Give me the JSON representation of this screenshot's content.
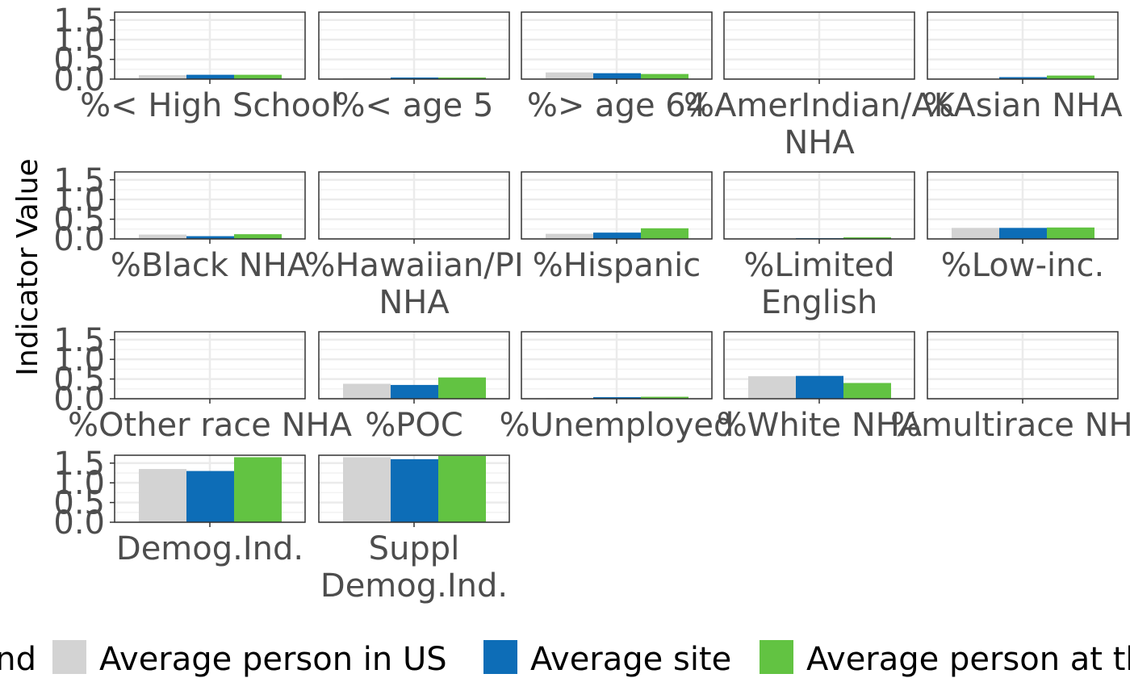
{
  "chart_data": {
    "type": "bar",
    "ylabel": "Indicator Value",
    "ylim": [
      0,
      1.7
    ],
    "y_ticks": [
      "0.0",
      "0.5",
      "1.0",
      "1.5"
    ],
    "grid": true,
    "legend_position": "bottom",
    "legend_title": "Legend",
    "series": [
      {
        "name": "Average person in US",
        "color": "#d3d3d3"
      },
      {
        "name": "Average site",
        "color": "#0d6db7"
      },
      {
        "name": "Average person at these sites",
        "color": "#62c342"
      }
    ],
    "facets": [
      {
        "label": "%< High School",
        "values": [
          0.1,
          0.11,
          0.11
        ]
      },
      {
        "label": "%< age 5",
        "values": [
          0.02,
          0.04,
          0.04
        ]
      },
      {
        "label": "%> age 64",
        "values": [
          0.17,
          0.15,
          0.13
        ]
      },
      {
        "label": "%AmerIndian/AK NHA",
        "values": [
          0.0,
          0.0,
          0.0
        ]
      },
      {
        "label": "%Asian NHA",
        "values": [
          0.0,
          0.05,
          0.09
        ]
      },
      {
        "label": "%Black NHA",
        "values": [
          0.11,
          0.07,
          0.12
        ]
      },
      {
        "label": "%Hawaiian/PI NHA",
        "values": [
          0.0,
          0.0,
          0.0
        ]
      },
      {
        "label": "%Hispanic",
        "values": [
          0.13,
          0.16,
          0.27
        ]
      },
      {
        "label": "%Limited English",
        "values": [
          0.01,
          0.02,
          0.04
        ]
      },
      {
        "label": "%Low-inc.",
        "values": [
          0.28,
          0.28,
          0.29
        ]
      },
      {
        "label": "%Other race NHA",
        "values": [
          0.0,
          0.0,
          0.0
        ]
      },
      {
        "label": "%POC",
        "values": [
          0.38,
          0.35,
          0.54
        ]
      },
      {
        "label": "%Unemployed",
        "values": [
          0.02,
          0.04,
          0.05
        ]
      },
      {
        "label": "%White NHA",
        "values": [
          0.57,
          0.58,
          0.4
        ]
      },
      {
        "label": "%multirace NHA",
        "values": [
          0.0,
          0.0,
          0.0
        ]
      },
      {
        "label": "Demog.Ind.",
        "values": [
          1.35,
          1.3,
          1.65
        ]
      },
      {
        "label": "Suppl Demog.Ind.",
        "values": [
          1.65,
          1.6,
          1.68
        ]
      }
    ]
  }
}
